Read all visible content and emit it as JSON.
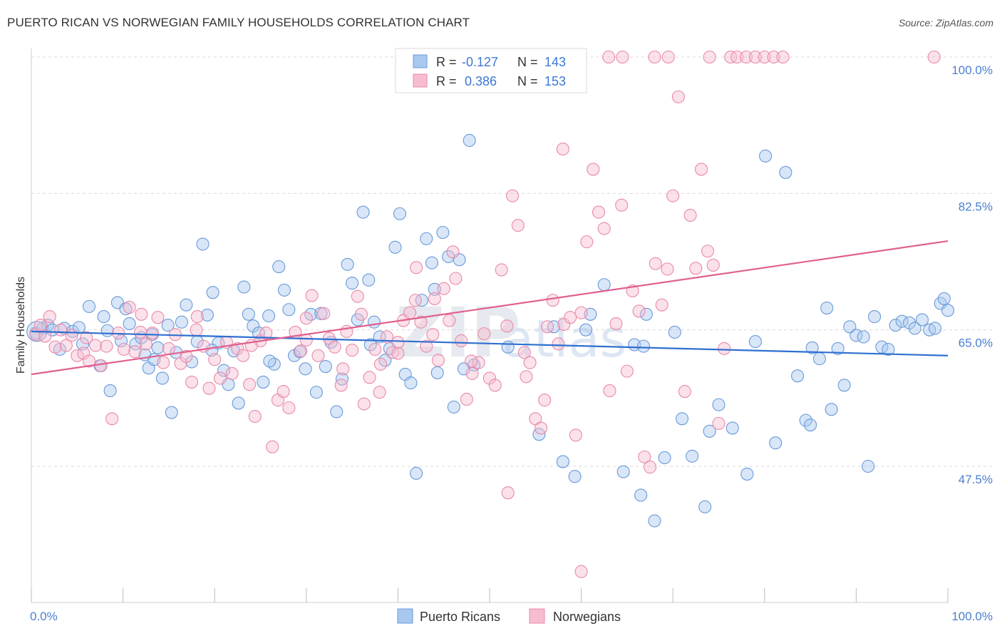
{
  "title": "PUERTO RICAN VS NORWEGIAN FAMILY HOUSEHOLDS CORRELATION CHART",
  "source": "Source: ZipAtlas.com",
  "watermark": {
    "zip": "ZIP",
    "atlas": "atlas"
  },
  "colors": {
    "blue_fill": "#a9c8f0",
    "blue_stroke": "#6a9ad8",
    "blue_line": "#2f6fd0",
    "pink_fill": "#f7bcd0",
    "pink_stroke": "#e88aa8",
    "pink_line": "#e0608e",
    "grid": "#d8d8d8",
    "axis_label": "#4a7fd0"
  },
  "legend": {
    "rows": [
      {
        "r_label": "R =",
        "r_value": "-0.127",
        "n_label": "N =",
        "n_value": "143"
      },
      {
        "r_label": "R =",
        "r_value": "0.386",
        "n_label": "N =",
        "n_value": "153"
      }
    ]
  },
  "bottom_legend": {
    "series1": "Puerto Ricans",
    "series2": "Norwegians"
  },
  "chart_data": {
    "type": "scatter",
    "ylabel": "Family Households",
    "xlim": [
      0,
      100
    ],
    "ylim": [
      33,
      101
    ],
    "x_tick_labels": [
      "0.0%",
      "100.0%"
    ],
    "y_ticks": [
      {
        "value": 100.0,
        "label": "100.0%"
      },
      {
        "value": 82.5,
        "label": "82.5%"
      },
      {
        "value": 65.0,
        "label": "65.0%"
      },
      {
        "value": 47.5,
        "label": "47.5%"
      }
    ],
    "x_minor_ticks": [
      0,
      10,
      20,
      30,
      40,
      50,
      60,
      70,
      80,
      90,
      100
    ],
    "grid": true,
    "legend_position": "top-center",
    "series": [
      {
        "name": "Puerto Ricans",
        "color": "blue",
        "trend": {
          "x": [
            0,
            100
          ],
          "y": [
            64.8,
            61.7
          ]
        },
        "points": [
          [
            0.5,
            64.6
          ],
          [
            1.2,
            65.2
          ],
          [
            1.8,
            65.6
          ],
          [
            2.3,
            65.0
          ],
          [
            3.1,
            62.5
          ],
          [
            3.6,
            65.2
          ],
          [
            4.5,
            64.8
          ],
          [
            5.2,
            65.3
          ],
          [
            5.6,
            63.2
          ],
          [
            6.3,
            68.0
          ],
          [
            7.5,
            60.4
          ],
          [
            7.9,
            66.7
          ],
          [
            8.3,
            64.9
          ],
          [
            8.6,
            57.2
          ],
          [
            9.4,
            68.5
          ],
          [
            9.8,
            63.6
          ],
          [
            10.3,
            67.7
          ],
          [
            10.7,
            65.8
          ],
          [
            11.4,
            63.2
          ],
          [
            12.0,
            64.0
          ],
          [
            12.4,
            61.8
          ],
          [
            12.8,
            60.1
          ],
          [
            13.2,
            64.4
          ],
          [
            13.8,
            62.7
          ],
          [
            14.3,
            58.8
          ],
          [
            14.9,
            65.6
          ],
          [
            15.3,
            54.4
          ],
          [
            15.8,
            62.1
          ],
          [
            16.4,
            66.0
          ],
          [
            16.9,
            68.2
          ],
          [
            17.5,
            60.9
          ],
          [
            18.1,
            63.5
          ],
          [
            18.7,
            76.0
          ],
          [
            19.2,
            66.9
          ],
          [
            19.8,
            69.8
          ],
          [
            20.4,
            63.3
          ],
          [
            21.0,
            59.8
          ],
          [
            21.5,
            58.0
          ],
          [
            22.1,
            62.3
          ],
          [
            22.6,
            55.6
          ],
          [
            23.2,
            70.5
          ],
          [
            23.7,
            67.0
          ],
          [
            24.2,
            65.5
          ],
          [
            24.8,
            64.6
          ],
          [
            25.3,
            58.3
          ],
          [
            25.9,
            66.8
          ],
          [
            26.5,
            60.6
          ],
          [
            27.0,
            73.1
          ],
          [
            27.6,
            70.1
          ],
          [
            28.1,
            67.6
          ],
          [
            28.7,
            61.7
          ],
          [
            29.3,
            62.2
          ],
          [
            29.9,
            60.0
          ],
          [
            30.5,
            67.0
          ],
          [
            31.1,
            57.0
          ],
          [
            31.6,
            67.1
          ],
          [
            32.1,
            60.3
          ],
          [
            32.7,
            63.4
          ],
          [
            33.3,
            54.5
          ],
          [
            33.9,
            58.7
          ],
          [
            34.5,
            73.4
          ],
          [
            35.0,
            71.0
          ],
          [
            35.6,
            66.3
          ],
          [
            36.2,
            80.1
          ],
          [
            36.8,
            71.4
          ],
          [
            37.4,
            66.0
          ],
          [
            38.0,
            64.1
          ],
          [
            38.6,
            61.1
          ],
          [
            39.1,
            62.6
          ],
          [
            39.7,
            75.6
          ],
          [
            40.2,
            79.9
          ],
          [
            40.8,
            59.3
          ],
          [
            41.4,
            58.2
          ],
          [
            42.0,
            46.6
          ],
          [
            42.6,
            68.8
          ],
          [
            43.1,
            76.7
          ],
          [
            43.7,
            73.6
          ],
          [
            44.3,
            59.5
          ],
          [
            44.9,
            77.5
          ],
          [
            45.5,
            74.4
          ],
          [
            46.1,
            55.1
          ],
          [
            46.7,
            74.0
          ],
          [
            47.2,
            60.0
          ],
          [
            47.8,
            89.3
          ],
          [
            48.3,
            60.5
          ],
          [
            55.4,
            51.6
          ],
          [
            57.0,
            65.4
          ],
          [
            59.3,
            46.2
          ],
          [
            61.0,
            67.0
          ],
          [
            62.5,
            70.8
          ],
          [
            64.6,
            46.8
          ],
          [
            65.8,
            63.1
          ],
          [
            66.5,
            43.8
          ],
          [
            67.1,
            67.0
          ],
          [
            68.0,
            40.5
          ],
          [
            69.1,
            48.6
          ],
          [
            70.2,
            64.7
          ],
          [
            71.0,
            53.6
          ],
          [
            72.1,
            48.8
          ],
          [
            73.5,
            42.3
          ],
          [
            75.0,
            55.4
          ],
          [
            76.5,
            52.4
          ],
          [
            78.1,
            46.5
          ],
          [
            79.0,
            63.5
          ],
          [
            80.1,
            87.3
          ],
          [
            81.2,
            50.5
          ],
          [
            82.3,
            85.2
          ],
          [
            83.6,
            59.1
          ],
          [
            84.5,
            53.4
          ],
          [
            85.2,
            62.7
          ],
          [
            86.0,
            61.3
          ],
          [
            86.8,
            67.8
          ],
          [
            87.3,
            54.8
          ],
          [
            88.0,
            62.6
          ],
          [
            88.7,
            57.9
          ],
          [
            89.3,
            65.4
          ],
          [
            90.0,
            64.3
          ],
          [
            90.8,
            64.1
          ],
          [
            91.3,
            47.5
          ],
          [
            92.0,
            66.7
          ],
          [
            92.8,
            62.8
          ],
          [
            93.5,
            62.5
          ],
          [
            94.3,
            65.6
          ],
          [
            95.0,
            66.1
          ],
          [
            95.8,
            65.9
          ],
          [
            96.4,
            65.2
          ],
          [
            97.2,
            66.3
          ],
          [
            98.0,
            65.0
          ],
          [
            98.6,
            65.2
          ],
          [
            99.2,
            68.4
          ],
          [
            99.6,
            69.0
          ],
          [
            100.0,
            67.5
          ],
          [
            85.0,
            52.8
          ],
          [
            74.0,
            52.0
          ],
          [
            66.8,
            62.9
          ],
          [
            52.0,
            62.8
          ],
          [
            26.0,
            61.0
          ],
          [
            19.7,
            62.4
          ],
          [
            13.4,
            61.2
          ],
          [
            44.0,
            70.2
          ],
          [
            37.0,
            63.1
          ],
          [
            58.0,
            48.1
          ],
          [
            60.5,
            65.0
          ]
        ]
      },
      {
        "name": "Norwegians",
        "color": "pink",
        "trend": {
          "x": [
            0,
            100
          ],
          "y": [
            59.3,
            76.4
          ]
        },
        "points": [
          [
            0.5,
            64.4
          ],
          [
            1.0,
            65.6
          ],
          [
            1.5,
            64.2
          ],
          [
            2.0,
            66.7
          ],
          [
            2.6,
            62.8
          ],
          [
            3.2,
            65.0
          ],
          [
            3.8,
            63.0
          ],
          [
            4.4,
            64.3
          ],
          [
            5.0,
            61.7
          ],
          [
            5.7,
            62.0
          ],
          [
            6.3,
            61.0
          ],
          [
            7.0,
            63.0
          ],
          [
            7.6,
            60.4
          ],
          [
            8.2,
            62.9
          ],
          [
            8.8,
            53.6
          ],
          [
            9.5,
            64.6
          ],
          [
            10.1,
            62.5
          ],
          [
            10.7,
            67.9
          ],
          [
            11.3,
            62.2
          ],
          [
            11.9,
            64.7
          ],
          [
            12.5,
            63.2
          ],
          [
            13.2,
            64.6
          ],
          [
            13.8,
            66.6
          ],
          [
            14.4,
            60.8
          ],
          [
            15.0,
            62.6
          ],
          [
            15.7,
            64.4
          ],
          [
            16.3,
            60.7
          ],
          [
            16.9,
            61.6
          ],
          [
            17.5,
            58.3
          ],
          [
            18.1,
            66.7
          ],
          [
            18.8,
            62.9
          ],
          [
            19.4,
            57.5
          ],
          [
            20.0,
            61.2
          ],
          [
            20.6,
            58.8
          ],
          [
            21.3,
            63.4
          ],
          [
            21.9,
            59.4
          ],
          [
            22.5,
            62.6
          ],
          [
            23.1,
            61.7
          ],
          [
            23.8,
            58.0
          ],
          [
            24.4,
            53.9
          ],
          [
            25.0,
            63.6
          ],
          [
            25.6,
            64.6
          ],
          [
            26.3,
            50.0
          ],
          [
            26.9,
            56.0
          ],
          [
            27.5,
            57.1
          ],
          [
            28.1,
            55.0
          ],
          [
            28.8,
            64.7
          ],
          [
            29.4,
            62.3
          ],
          [
            30.0,
            63.7
          ],
          [
            30.6,
            69.4
          ],
          [
            31.3,
            61.7
          ],
          [
            31.9,
            67.1
          ],
          [
            32.5,
            63.9
          ],
          [
            33.1,
            62.8
          ],
          [
            33.8,
            57.9
          ],
          [
            34.4,
            64.8
          ],
          [
            35.0,
            62.4
          ],
          [
            35.6,
            69.3
          ],
          [
            36.3,
            55.5
          ],
          [
            36.9,
            58.9
          ],
          [
            37.5,
            62.5
          ],
          [
            38.1,
            60.6
          ],
          [
            38.8,
            64.1
          ],
          [
            39.4,
            62.1
          ],
          [
            40.0,
            63.4
          ],
          [
            40.6,
            66.2
          ],
          [
            41.3,
            67.2
          ],
          [
            41.9,
            68.8
          ],
          [
            42.5,
            66.0
          ],
          [
            43.1,
            62.9
          ],
          [
            43.8,
            64.4
          ],
          [
            44.4,
            61.1
          ],
          [
            45.0,
            70.3
          ],
          [
            45.6,
            66.2
          ],
          [
            46.3,
            71.6
          ],
          [
            46.9,
            63.6
          ],
          [
            47.5,
            56.1
          ],
          [
            48.1,
            59.4
          ],
          [
            48.8,
            60.8
          ],
          [
            49.4,
            64.5
          ],
          [
            50.0,
            58.8
          ],
          [
            50.6,
            57.9
          ],
          [
            51.3,
            72.7
          ],
          [
            51.9,
            65.5
          ],
          [
            52.5,
            82.2
          ],
          [
            53.1,
            78.4
          ],
          [
            53.8,
            62.1
          ],
          [
            54.4,
            60.8
          ],
          [
            55.0,
            53.6
          ],
          [
            55.6,
            52.4
          ],
          [
            56.3,
            65.4
          ],
          [
            56.9,
            68.8
          ],
          [
            57.5,
            63.2
          ],
          [
            58.1,
            65.7
          ],
          [
            58.8,
            66.6
          ],
          [
            59.4,
            51.5
          ],
          [
            60.0,
            67.2
          ],
          [
            60.6,
            76.3
          ],
          [
            61.3,
            85.6
          ],
          [
            61.9,
            80.1
          ],
          [
            62.5,
            78.0
          ],
          [
            63.1,
            57.2
          ],
          [
            63.8,
            65.8
          ],
          [
            64.4,
            81.0
          ],
          [
            65.0,
            59.7
          ],
          [
            65.6,
            70.0
          ],
          [
            66.3,
            67.4
          ],
          [
            66.9,
            48.7
          ],
          [
            67.5,
            47.4
          ],
          [
            68.1,
            73.5
          ],
          [
            68.8,
            68.2
          ],
          [
            69.4,
            72.8
          ],
          [
            70.0,
            82.2
          ],
          [
            70.6,
            94.9
          ],
          [
            71.3,
            57.1
          ],
          [
            71.9,
            79.7
          ],
          [
            72.5,
            72.9
          ],
          [
            73.1,
            85.6
          ],
          [
            73.8,
            75.1
          ],
          [
            74.4,
            73.3
          ],
          [
            75.0,
            53.0
          ],
          [
            75.6,
            62.6
          ],
          [
            76.3,
            100.0
          ],
          [
            77.0,
            100.0
          ],
          [
            78.0,
            100.0
          ],
          [
            79.0,
            100.0
          ],
          [
            80.0,
            100.0
          ],
          [
            81.0,
            100.0
          ],
          [
            82.0,
            100.0
          ],
          [
            68.0,
            100.0
          ],
          [
            69.5,
            100.0
          ],
          [
            74.0,
            100.0
          ],
          [
            98.5,
            100.0
          ],
          [
            63.0,
            100.0
          ],
          [
            64.5,
            100.0
          ],
          [
            58.0,
            88.2
          ],
          [
            52.0,
            44.1
          ],
          [
            60.0,
            34.0
          ],
          [
            40.0,
            62.0
          ],
          [
            36.0,
            67.0
          ],
          [
            30.0,
            66.5
          ],
          [
            24.0,
            63.0
          ],
          [
            18.0,
            65.0
          ],
          [
            12.0,
            67.0
          ],
          [
            6.0,
            64.0
          ],
          [
            48.0,
            61.0
          ],
          [
            54.0,
            59.0
          ],
          [
            56.0,
            56.0
          ],
          [
            44.0,
            69.0
          ],
          [
            42.0,
            73.0
          ],
          [
            46.0,
            75.0
          ],
          [
            38.0,
            57.0
          ],
          [
            34.0,
            60.0
          ]
        ]
      }
    ]
  }
}
